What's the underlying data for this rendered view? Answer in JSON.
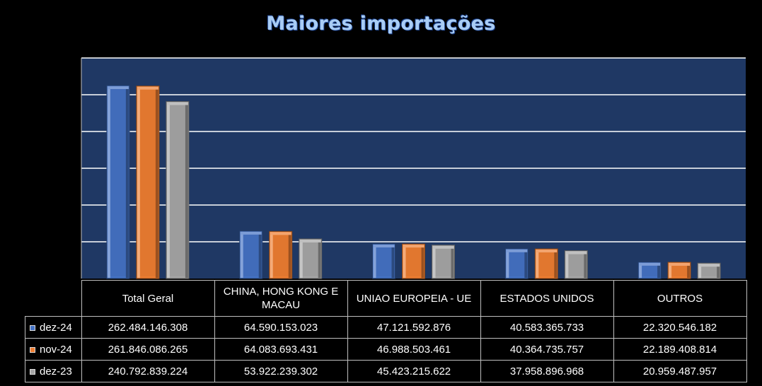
{
  "chart_data": {
    "type": "bar",
    "title": "Maiores importações",
    "categories": [
      "Total Geral",
      "CHINA, HONG KONG E MACAU",
      "UNIAO EUROPEIA - UE",
      "ESTADOS UNIDOS",
      "OUTROS"
    ],
    "series": [
      {
        "name": "dez-24",
        "color": "#4472c4",
        "values": [
          262484146308,
          64590153023,
          47121592876,
          40583365733,
          22320546182
        ],
        "labels": [
          "262.484.146.308",
          "64.590.153.023",
          "47.121.592.876",
          "40.583.365.733",
          "22.320.546.182"
        ]
      },
      {
        "name": "nov-24",
        "color": "#ed7d31",
        "values": [
          261846086265,
          64083693431,
          46988503461,
          40364735757,
          22189408814
        ],
        "labels": [
          "261.846.086.265",
          "64.083.693.431",
          "46.988.503.461",
          "40.364.735.757",
          "22.189.408.814"
        ]
      },
      {
        "name": "dez-23",
        "color": "#a5a5a5",
        "values": [
          240792839224,
          53922239302,
          45423215622,
          37958896968,
          20959487957
        ],
        "labels": [
          "240.792.839.224",
          "53.922.239.302",
          "45.423.215.622",
          "37.958.896.968",
          "20.959.487.957"
        ]
      }
    ],
    "ylim": [
      0,
      300000000000
    ],
    "grid": true,
    "plot_background": "#1f3864",
    "legend": "data-table"
  }
}
